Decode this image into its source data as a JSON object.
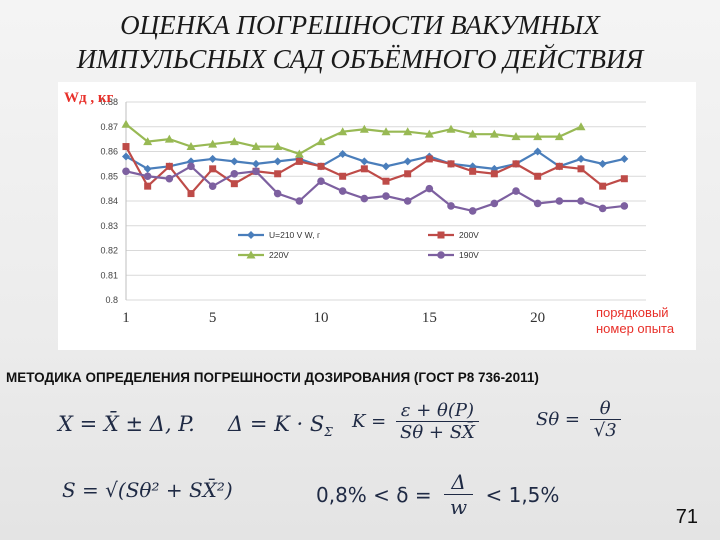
{
  "title_line1": "ОЦЕНКА ПОГРЕШНОСТИ ВАКУМНЫХ",
  "title_line2": "ИМПУЛЬСНЫХ САД ОБЪЁМНОГО ДЕЙСТВИЯ",
  "method_line": "МЕТОДИКА ОПРЕДЕЛЕНИЯ ПОГРЕШНОСТИ ДОЗИРОВАНИЯ (ГОСТ Р8 736-2011)",
  "formulas": {
    "f1": "X = X̄ ± Δ, P.",
    "f2": "Δ = K · S",
    "f3_left": "K =",
    "f3_num": "ε + θ(P)",
    "f3_den": "Sθ + SX̄",
    "f4_left": "Sθ =",
    "f4_num": "θ",
    "f4_den": "√3",
    "f5": "S = √(Sθ² + SX̄²)",
    "f6_left": "0,8% < δ =",
    "f6_num": "Δ",
    "f6_den": "w",
    "f6_right": "< 1,5%"
  },
  "page_number": "71",
  "colors": {
    "blue": "#4a7ebb",
    "red": "#be4b48",
    "green": "#98b954",
    "purple": "#7d60a0",
    "axis_label_red": "#e8302a"
  },
  "chart_data": {
    "type": "line",
    "ylabel": "Wд , кг",
    "xlabel": "порядковый номер опыта",
    "ylim": [
      0.8,
      0.88
    ],
    "xlim": [
      1,
      25
    ],
    "y_ticks": [
      "0.8",
      "0.81",
      "0.82",
      "0.83",
      "0.84",
      "0.85",
      "0.86",
      "0.87",
      "0.88"
    ],
    "x_ticks": [
      "1",
      "5",
      "10",
      "15",
      "20"
    ],
    "grid": true,
    "legend_position": "bottom-center",
    "x": [
      1,
      2,
      3,
      4,
      5,
      6,
      7,
      8,
      9,
      10,
      11,
      12,
      13,
      14,
      15,
      16,
      17,
      18,
      19,
      20,
      21,
      22,
      23,
      24
    ],
    "series": [
      {
        "name": "U=210 V W, г",
        "color": "blue",
        "marker": "diamond",
        "values": [
          0.858,
          0.853,
          0.854,
          0.856,
          0.857,
          0.856,
          0.855,
          0.856,
          0.857,
          0.854,
          0.859,
          0.856,
          0.854,
          0.856,
          0.858,
          0.855,
          0.854,
          0.853,
          0.855,
          0.86,
          0.854,
          0.857,
          0.855,
          0.857
        ]
      },
      {
        "name": "200V",
        "color": "red",
        "marker": "square",
        "values": [
          0.862,
          0.846,
          0.854,
          0.843,
          0.853,
          0.847,
          0.852,
          0.851,
          0.856,
          0.854,
          0.85,
          0.853,
          0.848,
          0.851,
          0.857,
          0.855,
          0.852,
          0.851,
          0.855,
          0.85,
          0.854,
          0.853,
          0.846,
          0.849
        ]
      },
      {
        "name": "220V",
        "color": "green",
        "marker": "triangle",
        "values": [
          0.871,
          0.864,
          0.865,
          0.862,
          0.863,
          0.864,
          0.862,
          0.862,
          0.859,
          0.864,
          0.868,
          0.869,
          0.868,
          0.868,
          0.867,
          0.869,
          0.867,
          0.867,
          0.866,
          0.866,
          0.866,
          0.87,
          null,
          null
        ]
      },
      {
        "name": "190V",
        "color": "purple",
        "marker": "circle",
        "values": [
          0.852,
          0.85,
          0.849,
          0.854,
          0.846,
          0.851,
          0.852,
          0.843,
          0.84,
          0.848,
          0.844,
          0.841,
          0.842,
          0.84,
          0.845,
          0.838,
          0.836,
          0.839,
          0.844,
          0.839,
          0.84,
          0.84,
          0.837,
          0.838
        ]
      }
    ]
  }
}
